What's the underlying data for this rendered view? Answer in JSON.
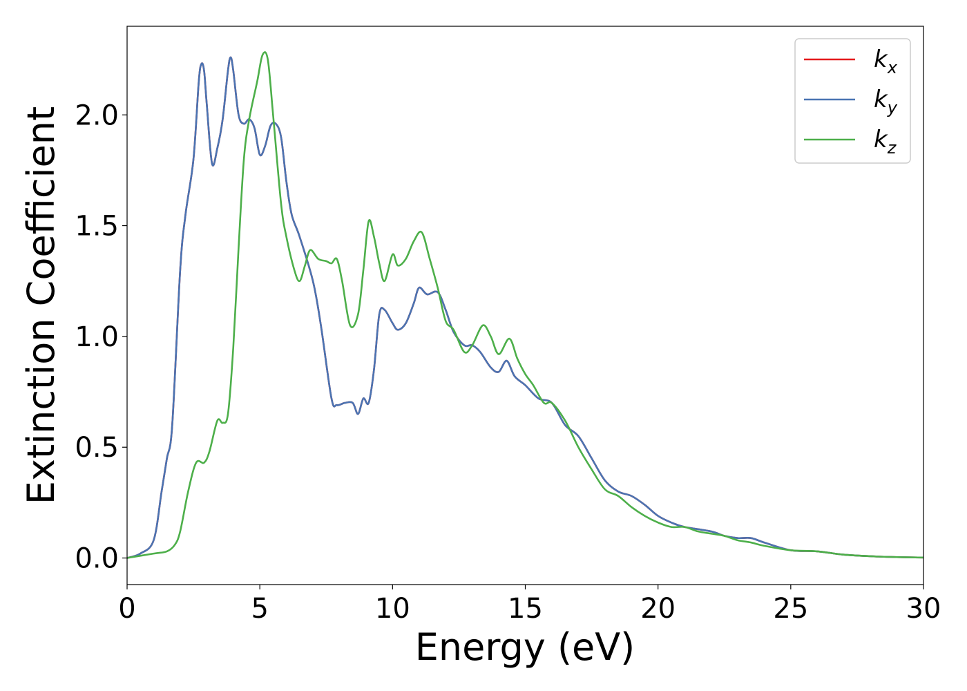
{
  "chart_data": {
    "type": "line",
    "title": "",
    "xlabel": "Energy (eV)",
    "ylabel": "Extinction Coefficient",
    "xlim": [
      0,
      30
    ],
    "ylim": [
      -0.12,
      2.4
    ],
    "xticks": [
      "0",
      "5",
      "10",
      "15",
      "20",
      "25",
      "30"
    ],
    "yticks": [
      "0.0",
      "0.5",
      "1.0",
      "1.5",
      "2.0"
    ],
    "grid": false,
    "legend_position": "top-right",
    "series": [
      {
        "name": "k_x",
        "legend_base": "k",
        "legend_sub": "x",
        "color": "#e41a1c",
        "points": [
          [
            0,
            0
          ],
          [
            0.5,
            0.02
          ],
          [
            1,
            0.08
          ],
          [
            1.3,
            0.3
          ],
          [
            1.5,
            0.45
          ],
          [
            1.7,
            0.6
          ],
          [
            2,
            1.3
          ],
          [
            2.2,
            1.55
          ],
          [
            2.5,
            1.8
          ],
          [
            2.7,
            2.15
          ],
          [
            2.8,
            2.23
          ],
          [
            2.9,
            2.2
          ],
          [
            3,
            2.05
          ],
          [
            3.2,
            1.78
          ],
          [
            3.4,
            1.85
          ],
          [
            3.6,
            1.98
          ],
          [
            3.8,
            2.2
          ],
          [
            3.9,
            2.26
          ],
          [
            4,
            2.2
          ],
          [
            4.2,
            2.0
          ],
          [
            4.4,
            1.96
          ],
          [
            4.6,
            1.98
          ],
          [
            4.8,
            1.94
          ],
          [
            5,
            1.82
          ],
          [
            5.2,
            1.86
          ],
          [
            5.4,
            1.95
          ],
          [
            5.6,
            1.96
          ],
          [
            5.8,
            1.9
          ],
          [
            6,
            1.7
          ],
          [
            6.2,
            1.55
          ],
          [
            6.5,
            1.45
          ],
          [
            7,
            1.25
          ],
          [
            7.3,
            1.05
          ],
          [
            7.7,
            0.72
          ],
          [
            7.9,
            0.69
          ],
          [
            8.2,
            0.7
          ],
          [
            8.5,
            0.7
          ],
          [
            8.7,
            0.65
          ],
          [
            8.9,
            0.72
          ],
          [
            9.1,
            0.7
          ],
          [
            9.3,
            0.85
          ],
          [
            9.5,
            1.1
          ],
          [
            9.7,
            1.12
          ],
          [
            10,
            1.06
          ],
          [
            10.2,
            1.03
          ],
          [
            10.5,
            1.06
          ],
          [
            10.8,
            1.15
          ],
          [
            11,
            1.22
          ],
          [
            11.3,
            1.19
          ],
          [
            11.7,
            1.2
          ],
          [
            12,
            1.12
          ],
          [
            12.3,
            1.02
          ],
          [
            12.7,
            0.96
          ],
          [
            13,
            0.96
          ],
          [
            13.3,
            0.93
          ],
          [
            13.7,
            0.86
          ],
          [
            14,
            0.84
          ],
          [
            14.3,
            0.89
          ],
          [
            14.6,
            0.82
          ],
          [
            15,
            0.78
          ],
          [
            15.5,
            0.72
          ],
          [
            16,
            0.7
          ],
          [
            16.5,
            0.6
          ],
          [
            17,
            0.55
          ],
          [
            17.5,
            0.45
          ],
          [
            18,
            0.35
          ],
          [
            18.5,
            0.3
          ],
          [
            19,
            0.28
          ],
          [
            19.5,
            0.24
          ],
          [
            20,
            0.19
          ],
          [
            20.5,
            0.16
          ],
          [
            21,
            0.14
          ],
          [
            22,
            0.12
          ],
          [
            22.5,
            0.1
          ],
          [
            23,
            0.09
          ],
          [
            23.5,
            0.09
          ],
          [
            24,
            0.07
          ],
          [
            25,
            0.035
          ],
          [
            26,
            0.03
          ],
          [
            27,
            0.015
          ],
          [
            28,
            0.008
          ],
          [
            29,
            0.004
          ],
          [
            30,
            0.002
          ]
        ]
      },
      {
        "name": "k_y",
        "legend_base": "k",
        "legend_sub": "y",
        "color": "#4a74b2",
        "points": [
          [
            0,
            0
          ],
          [
            0.5,
            0.02
          ],
          [
            1,
            0.08
          ],
          [
            1.3,
            0.3
          ],
          [
            1.5,
            0.45
          ],
          [
            1.7,
            0.6
          ],
          [
            2,
            1.3
          ],
          [
            2.2,
            1.55
          ],
          [
            2.5,
            1.8
          ],
          [
            2.7,
            2.15
          ],
          [
            2.8,
            2.23
          ],
          [
            2.9,
            2.2
          ],
          [
            3,
            2.05
          ],
          [
            3.2,
            1.78
          ],
          [
            3.4,
            1.85
          ],
          [
            3.6,
            1.98
          ],
          [
            3.8,
            2.2
          ],
          [
            3.9,
            2.26
          ],
          [
            4,
            2.2
          ],
          [
            4.2,
            2.0
          ],
          [
            4.4,
            1.96
          ],
          [
            4.6,
            1.98
          ],
          [
            4.8,
            1.94
          ],
          [
            5,
            1.82
          ],
          [
            5.2,
            1.86
          ],
          [
            5.4,
            1.95
          ],
          [
            5.6,
            1.96
          ],
          [
            5.8,
            1.9
          ],
          [
            6,
            1.7
          ],
          [
            6.2,
            1.55
          ],
          [
            6.5,
            1.45
          ],
          [
            7,
            1.25
          ],
          [
            7.3,
            1.05
          ],
          [
            7.7,
            0.72
          ],
          [
            7.9,
            0.69
          ],
          [
            8.2,
            0.7
          ],
          [
            8.5,
            0.7
          ],
          [
            8.7,
            0.65
          ],
          [
            8.9,
            0.72
          ],
          [
            9.1,
            0.7
          ],
          [
            9.3,
            0.85
          ],
          [
            9.5,
            1.1
          ],
          [
            9.7,
            1.12
          ],
          [
            10,
            1.06
          ],
          [
            10.2,
            1.03
          ],
          [
            10.5,
            1.06
          ],
          [
            10.8,
            1.15
          ],
          [
            11,
            1.22
          ],
          [
            11.3,
            1.19
          ],
          [
            11.7,
            1.2
          ],
          [
            12,
            1.12
          ],
          [
            12.3,
            1.02
          ],
          [
            12.7,
            0.96
          ],
          [
            13,
            0.96
          ],
          [
            13.3,
            0.93
          ],
          [
            13.7,
            0.86
          ],
          [
            14,
            0.84
          ],
          [
            14.3,
            0.89
          ],
          [
            14.6,
            0.82
          ],
          [
            15,
            0.78
          ],
          [
            15.5,
            0.72
          ],
          [
            16,
            0.7
          ],
          [
            16.5,
            0.6
          ],
          [
            17,
            0.55
          ],
          [
            17.5,
            0.45
          ],
          [
            18,
            0.35
          ],
          [
            18.5,
            0.3
          ],
          [
            19,
            0.28
          ],
          [
            19.5,
            0.24
          ],
          [
            20,
            0.19
          ],
          [
            20.5,
            0.16
          ],
          [
            21,
            0.14
          ],
          [
            22,
            0.12
          ],
          [
            22.5,
            0.1
          ],
          [
            23,
            0.09
          ],
          [
            23.5,
            0.09
          ],
          [
            24,
            0.07
          ],
          [
            25,
            0.035
          ],
          [
            26,
            0.03
          ],
          [
            27,
            0.015
          ],
          [
            28,
            0.008
          ],
          [
            29,
            0.004
          ],
          [
            30,
            0.002
          ]
        ]
      },
      {
        "name": "k_z",
        "legend_base": "k",
        "legend_sub": "z",
        "color": "#4daf4a",
        "points": [
          [
            0,
            0
          ],
          [
            1,
            0.02
          ],
          [
            1.5,
            0.03
          ],
          [
            1.8,
            0.06
          ],
          [
            2,
            0.12
          ],
          [
            2.3,
            0.3
          ],
          [
            2.6,
            0.43
          ],
          [
            2.9,
            0.43
          ],
          [
            3.1,
            0.48
          ],
          [
            3.4,
            0.62
          ],
          [
            3.6,
            0.61
          ],
          [
            3.8,
            0.65
          ],
          [
            4,
            0.95
          ],
          [
            4.2,
            1.4
          ],
          [
            4.4,
            1.8
          ],
          [
            4.6,
            1.98
          ],
          [
            4.9,
            2.15
          ],
          [
            5.1,
            2.27
          ],
          [
            5.3,
            2.25
          ],
          [
            5.5,
            2.0
          ],
          [
            5.8,
            1.6
          ],
          [
            6,
            1.45
          ],
          [
            6.3,
            1.3
          ],
          [
            6.5,
            1.25
          ],
          [
            6.7,
            1.32
          ],
          [
            6.9,
            1.39
          ],
          [
            7.2,
            1.35
          ],
          [
            7.5,
            1.34
          ],
          [
            7.7,
            1.33
          ],
          [
            7.9,
            1.35
          ],
          [
            8.1,
            1.25
          ],
          [
            8.4,
            1.05
          ],
          [
            8.7,
            1.1
          ],
          [
            8.9,
            1.3
          ],
          [
            9.1,
            1.52
          ],
          [
            9.3,
            1.45
          ],
          [
            9.5,
            1.33
          ],
          [
            9.7,
            1.25
          ],
          [
            10,
            1.37
          ],
          [
            10.2,
            1.32
          ],
          [
            10.5,
            1.35
          ],
          [
            10.8,
            1.43
          ],
          [
            11.1,
            1.47
          ],
          [
            11.4,
            1.35
          ],
          [
            11.7,
            1.22
          ],
          [
            12,
            1.07
          ],
          [
            12.3,
            1.03
          ],
          [
            12.7,
            0.93
          ],
          [
            13,
            0.96
          ],
          [
            13.4,
            1.05
          ],
          [
            13.7,
            1.0
          ],
          [
            14,
            0.92
          ],
          [
            14.4,
            0.99
          ],
          [
            14.7,
            0.9
          ],
          [
            15,
            0.83
          ],
          [
            15.3,
            0.78
          ],
          [
            15.7,
            0.7
          ],
          [
            16,
            0.7
          ],
          [
            16.5,
            0.62
          ],
          [
            17,
            0.5
          ],
          [
            17.5,
            0.4
          ],
          [
            18,
            0.31
          ],
          [
            18.5,
            0.28
          ],
          [
            19,
            0.23
          ],
          [
            19.5,
            0.19
          ],
          [
            20,
            0.16
          ],
          [
            20.5,
            0.14
          ],
          [
            21,
            0.14
          ],
          [
            21.5,
            0.12
          ],
          [
            22,
            0.11
          ],
          [
            22.5,
            0.1
          ],
          [
            23,
            0.08
          ],
          [
            23.5,
            0.07
          ],
          [
            24,
            0.055
          ],
          [
            25,
            0.035
          ],
          [
            26,
            0.03
          ],
          [
            27,
            0.015
          ],
          [
            28,
            0.008
          ],
          [
            29,
            0.004
          ],
          [
            30,
            0.002
          ]
        ]
      }
    ]
  }
}
